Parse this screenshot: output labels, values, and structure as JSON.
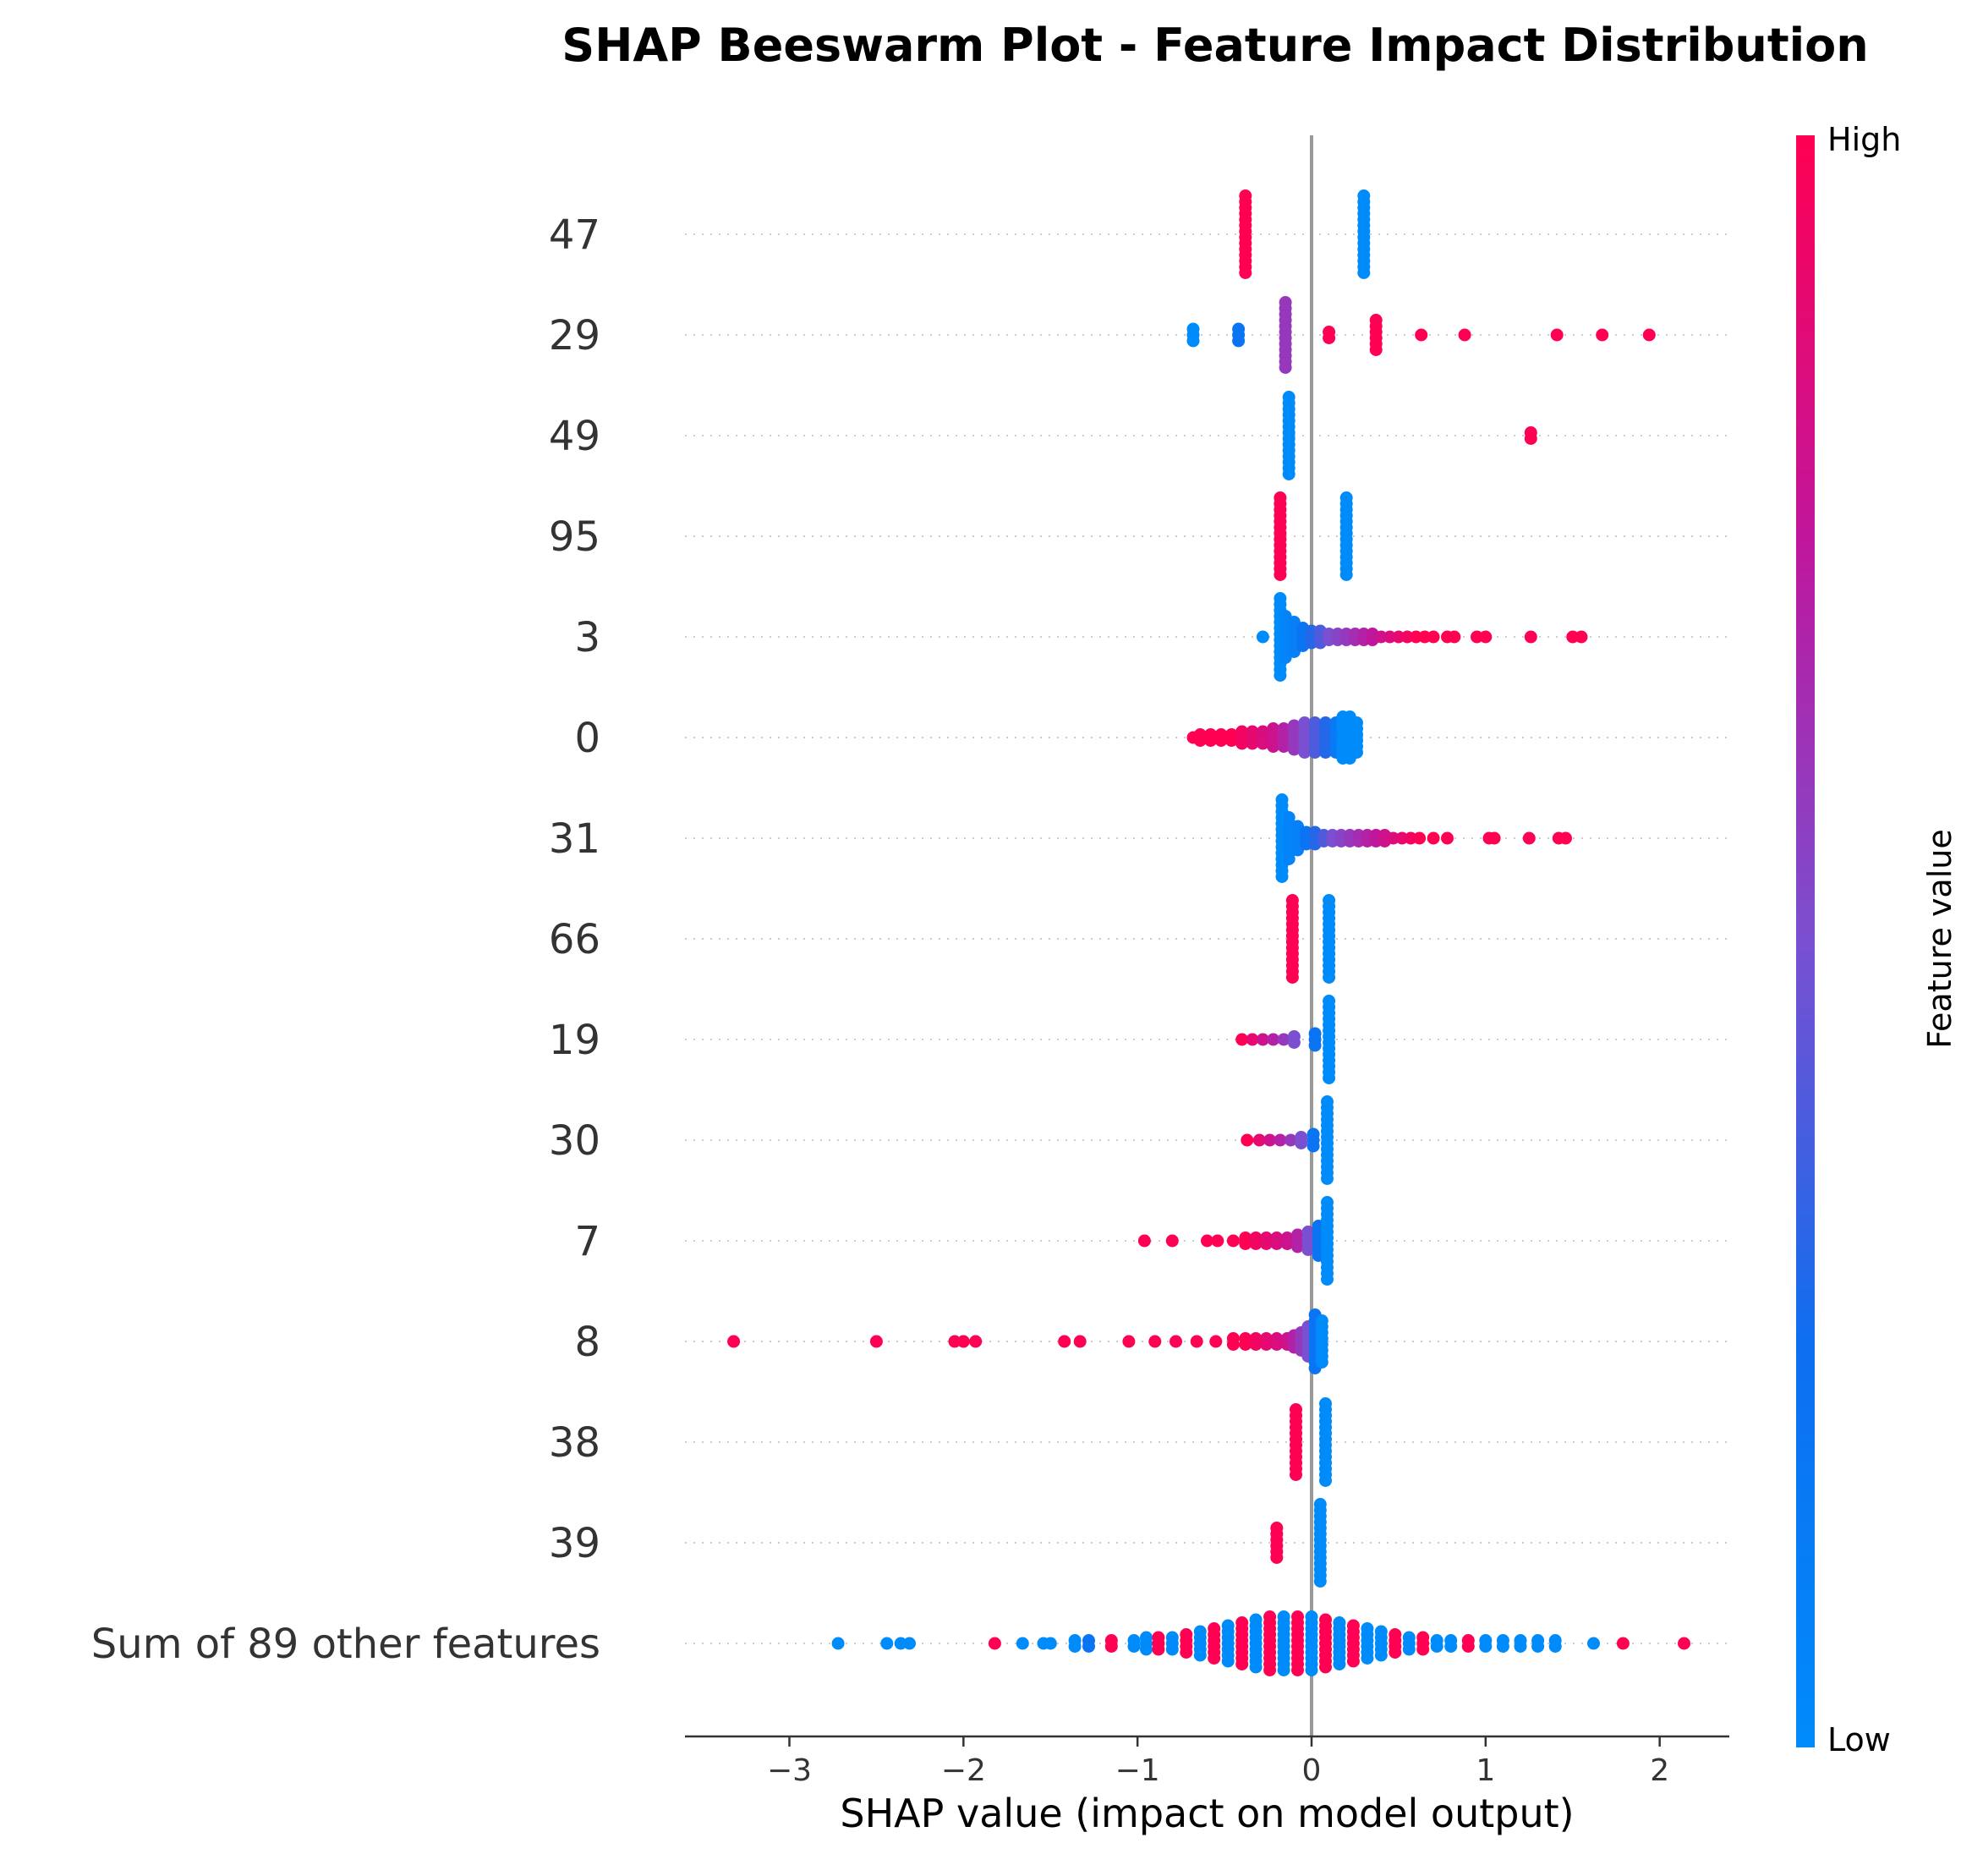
{
  "chart_data": {
    "type": "scatter",
    "subtype": "beeswarm",
    "title": "SHAP Beeswarm Plot - Feature Impact Distribution",
    "xlabel": "SHAP value (impact on model output)",
    "xlim": [
      -3.6,
      2.4
    ],
    "xticks": [
      -3,
      -2,
      -1,
      0,
      1,
      2
    ],
    "xtick_labels": [
      "−3",
      "−2",
      "−1",
      "0",
      "1",
      "2"
    ],
    "colorbar": {
      "label": "Feature value",
      "high_label": "High",
      "low_label": "Low",
      "high_color": "#ff0052",
      "low_color": "#008bfb"
    },
    "features": [
      {
        "name": "47",
        "points": [
          {
            "x": -0.38,
            "v": 1,
            "n": 14
          },
          {
            "x": 0.3,
            "v": 0,
            "n": 14
          }
        ]
      },
      {
        "name": "29",
        "points": [
          {
            "x": -0.68,
            "v": 0,
            "n": 3
          },
          {
            "x": -0.42,
            "v": 0.2,
            "n": 3
          },
          {
            "x": -0.15,
            "v": 0.6,
            "n": 12
          },
          {
            "x": 0.1,
            "v": 1,
            "n": 2
          },
          {
            "x": 0.37,
            "v": 1,
            "n": 6
          },
          {
            "x": 0.63,
            "v": 1,
            "n": 1
          },
          {
            "x": 0.88,
            "v": 1,
            "n": 1
          },
          {
            "x": 1.41,
            "v": 1,
            "n": 1
          },
          {
            "x": 1.67,
            "v": 1,
            "n": 1
          },
          {
            "x": 1.94,
            "v": 1,
            "n": 1
          }
        ]
      },
      {
        "name": "49",
        "points": [
          {
            "x": -0.13,
            "v": 0,
            "n": 14
          },
          {
            "x": 1.26,
            "v": 1,
            "n": 2
          }
        ]
      },
      {
        "name": "95",
        "points": [
          {
            "x": -0.18,
            "v": 1,
            "n": 14
          },
          {
            "x": 0.2,
            "v": 0,
            "n": 14
          }
        ]
      },
      {
        "name": "3",
        "points": [
          {
            "x": -0.28,
            "v": 0,
            "n": 1
          },
          {
            "x": -0.18,
            "v": 0,
            "n": 14
          },
          {
            "x": -0.15,
            "v": 0.05,
            "n": 8
          },
          {
            "x": -0.1,
            "v": 0.1,
            "n": 6
          },
          {
            "x": -0.05,
            "v": 0.2,
            "n": 4
          },
          {
            "x": 0.0,
            "v": 0.3,
            "n": 3
          },
          {
            "x": 0.05,
            "v": 0.4,
            "n": 3
          },
          {
            "x": 0.1,
            "v": 0.5,
            "n": 2
          },
          {
            "x": 0.15,
            "v": 0.55,
            "n": 2
          },
          {
            "x": 0.2,
            "v": 0.6,
            "n": 2
          },
          {
            "x": 0.25,
            "v": 0.65,
            "n": 2
          },
          {
            "x": 0.3,
            "v": 0.7,
            "n": 2
          },
          {
            "x": 0.35,
            "v": 0.75,
            "n": 2
          },
          {
            "x": 0.4,
            "v": 0.8,
            "n": 1
          },
          {
            "x": 0.45,
            "v": 0.85,
            "n": 1
          },
          {
            "x": 0.5,
            "v": 0.9,
            "n": 1
          },
          {
            "x": 0.55,
            "v": 0.95,
            "n": 1
          },
          {
            "x": 0.6,
            "v": 1,
            "n": 1
          },
          {
            "x": 0.65,
            "v": 1,
            "n": 1
          },
          {
            "x": 0.7,
            "v": 1,
            "n": 1
          },
          {
            "x": 0.78,
            "v": 1,
            "n": 1
          },
          {
            "x": 0.82,
            "v": 1,
            "n": 1
          },
          {
            "x": 0.95,
            "v": 1,
            "n": 1
          },
          {
            "x": 1.0,
            "v": 1,
            "n": 1
          },
          {
            "x": 1.26,
            "v": 1,
            "n": 1
          },
          {
            "x": 1.5,
            "v": 1,
            "n": 1
          },
          {
            "x": 1.55,
            "v": 1,
            "n": 1
          }
        ]
      },
      {
        "name": "0",
        "points": [
          {
            "x": -0.68,
            "v": 1,
            "n": 1
          },
          {
            "x": -0.64,
            "v": 1,
            "n": 2
          },
          {
            "x": -0.58,
            "v": 1,
            "n": 2
          },
          {
            "x": -0.52,
            "v": 1,
            "n": 2
          },
          {
            "x": -0.46,
            "v": 1,
            "n": 2
          },
          {
            "x": -0.4,
            "v": 0.95,
            "n": 3
          },
          {
            "x": -0.34,
            "v": 0.9,
            "n": 3
          },
          {
            "x": -0.28,
            "v": 0.85,
            "n": 3
          },
          {
            "x": -0.22,
            "v": 0.8,
            "n": 4
          },
          {
            "x": -0.16,
            "v": 0.7,
            "n": 4
          },
          {
            "x": -0.1,
            "v": 0.6,
            "n": 5
          },
          {
            "x": -0.04,
            "v": 0.5,
            "n": 6
          },
          {
            "x": 0.02,
            "v": 0.4,
            "n": 6
          },
          {
            "x": 0.08,
            "v": 0.3,
            "n": 6
          },
          {
            "x": 0.14,
            "v": 0.15,
            "n": 6
          },
          {
            "x": 0.18,
            "v": 0,
            "n": 8
          },
          {
            "x": 0.22,
            "v": 0,
            "n": 8
          },
          {
            "x": 0.26,
            "v": 0,
            "n": 6
          }
        ]
      },
      {
        "name": "31",
        "points": [
          {
            "x": -0.17,
            "v": 0,
            "n": 14
          },
          {
            "x": -0.13,
            "v": 0.05,
            "n": 8
          },
          {
            "x": -0.08,
            "v": 0.1,
            "n": 5
          },
          {
            "x": -0.03,
            "v": 0.2,
            "n": 3
          },
          {
            "x": 0.02,
            "v": 0.3,
            "n": 3
          },
          {
            "x": 0.07,
            "v": 0.4,
            "n": 2
          },
          {
            "x": 0.12,
            "v": 0.5,
            "n": 2
          },
          {
            "x": 0.17,
            "v": 0.55,
            "n": 2
          },
          {
            "x": 0.22,
            "v": 0.6,
            "n": 2
          },
          {
            "x": 0.27,
            "v": 0.65,
            "n": 2
          },
          {
            "x": 0.32,
            "v": 0.7,
            "n": 2
          },
          {
            "x": 0.37,
            "v": 0.75,
            "n": 2
          },
          {
            "x": 0.42,
            "v": 0.8,
            "n": 2
          },
          {
            "x": 0.47,
            "v": 0.85,
            "n": 1
          },
          {
            "x": 0.52,
            "v": 0.9,
            "n": 1
          },
          {
            "x": 0.57,
            "v": 0.95,
            "n": 1
          },
          {
            "x": 0.62,
            "v": 1,
            "n": 1
          },
          {
            "x": 0.7,
            "v": 1,
            "n": 1
          },
          {
            "x": 0.78,
            "v": 1,
            "n": 1
          },
          {
            "x": 1.02,
            "v": 1,
            "n": 1
          },
          {
            "x": 1.05,
            "v": 1,
            "n": 1
          },
          {
            "x": 1.25,
            "v": 1,
            "n": 1
          },
          {
            "x": 1.42,
            "v": 1,
            "n": 1
          },
          {
            "x": 1.46,
            "v": 1,
            "n": 1
          }
        ]
      },
      {
        "name": "66",
        "points": [
          {
            "x": -0.11,
            "v": 1,
            "n": 14
          },
          {
            "x": 0.1,
            "v": 0,
            "n": 14
          }
        ]
      },
      {
        "name": "19",
        "points": [
          {
            "x": -0.4,
            "v": 1,
            "n": 1
          },
          {
            "x": -0.34,
            "v": 0.9,
            "n": 1
          },
          {
            "x": -0.28,
            "v": 0.8,
            "n": 1
          },
          {
            "x": -0.22,
            "v": 0.7,
            "n": 1
          },
          {
            "x": -0.16,
            "v": 0.6,
            "n": 1
          },
          {
            "x": -0.1,
            "v": 0.5,
            "n": 2
          },
          {
            "x": 0.02,
            "v": 0.2,
            "n": 3
          },
          {
            "x": 0.1,
            "v": 0,
            "n": 14
          }
        ]
      },
      {
        "name": "30",
        "points": [
          {
            "x": -0.37,
            "v": 1,
            "n": 1
          },
          {
            "x": -0.3,
            "v": 0.9,
            "n": 1
          },
          {
            "x": -0.24,
            "v": 0.8,
            "n": 1
          },
          {
            "x": -0.18,
            "v": 0.7,
            "n": 1
          },
          {
            "x": -0.12,
            "v": 0.6,
            "n": 1
          },
          {
            "x": -0.06,
            "v": 0.5,
            "n": 2
          },
          {
            "x": 0.01,
            "v": 0.2,
            "n": 3
          },
          {
            "x": 0.09,
            "v": 0,
            "n": 14
          }
        ]
      },
      {
        "name": "7",
        "points": [
          {
            "x": -0.96,
            "v": 1,
            "n": 1
          },
          {
            "x": -0.8,
            "v": 1,
            "n": 1
          },
          {
            "x": -0.6,
            "v": 1,
            "n": 1
          },
          {
            "x": -0.54,
            "v": 1,
            "n": 1
          },
          {
            "x": -0.45,
            "v": 1,
            "n": 1
          },
          {
            "x": -0.38,
            "v": 1,
            "n": 2
          },
          {
            "x": -0.32,
            "v": 0.95,
            "n": 2
          },
          {
            "x": -0.26,
            "v": 0.9,
            "n": 2
          },
          {
            "x": -0.2,
            "v": 0.85,
            "n": 2
          },
          {
            "x": -0.14,
            "v": 0.8,
            "n": 2
          },
          {
            "x": -0.08,
            "v": 0.7,
            "n": 3
          },
          {
            "x": -0.02,
            "v": 0.5,
            "n": 4
          },
          {
            "x": 0.04,
            "v": 0.2,
            "n": 6
          },
          {
            "x": 0.09,
            "v": 0,
            "n": 14
          }
        ]
      },
      {
        "name": "8",
        "points": [
          {
            "x": -3.32,
            "v": 1,
            "n": 1
          },
          {
            "x": -2.5,
            "v": 1,
            "n": 1
          },
          {
            "x": -2.05,
            "v": 1,
            "n": 1
          },
          {
            "x": -2.0,
            "v": 1,
            "n": 1
          },
          {
            "x": -1.93,
            "v": 1,
            "n": 1
          },
          {
            "x": -1.42,
            "v": 1,
            "n": 1
          },
          {
            "x": -1.33,
            "v": 1,
            "n": 1
          },
          {
            "x": -1.05,
            "v": 1,
            "n": 1
          },
          {
            "x": -0.9,
            "v": 1,
            "n": 1
          },
          {
            "x": -0.78,
            "v": 1,
            "n": 1
          },
          {
            "x": -0.66,
            "v": 1,
            "n": 1
          },
          {
            "x": -0.55,
            "v": 1,
            "n": 1
          },
          {
            "x": -0.45,
            "v": 1,
            "n": 2
          },
          {
            "x": -0.38,
            "v": 1,
            "n": 2
          },
          {
            "x": -0.32,
            "v": 0.95,
            "n": 2
          },
          {
            "x": -0.26,
            "v": 0.9,
            "n": 2
          },
          {
            "x": -0.2,
            "v": 0.85,
            "n": 2
          },
          {
            "x": -0.14,
            "v": 0.8,
            "n": 2
          },
          {
            "x": -0.1,
            "v": 0.7,
            "n": 3
          },
          {
            "x": -0.06,
            "v": 0.6,
            "n": 4
          },
          {
            "x": -0.02,
            "v": 0.5,
            "n": 6
          },
          {
            "x": 0.02,
            "v": 0.2,
            "n": 10
          },
          {
            "x": 0.06,
            "v": 0,
            "n": 8
          }
        ]
      },
      {
        "name": "38",
        "points": [
          {
            "x": -0.09,
            "v": 1,
            "n": 12
          },
          {
            "x": 0.08,
            "v": 0,
            "n": 14
          }
        ]
      },
      {
        "name": "39",
        "points": [
          {
            "x": -0.2,
            "v": 1,
            "n": 6
          },
          {
            "x": 0.05,
            "v": 0,
            "n": 14
          }
        ]
      },
      {
        "name": "Sum of 89 other features",
        "points": [
          {
            "x": -2.72,
            "v": 0,
            "n": 1
          },
          {
            "x": -2.44,
            "v": 0,
            "n": 1
          },
          {
            "x": -2.36,
            "v": 0,
            "n": 1
          },
          {
            "x": -2.31,
            "v": 0,
            "n": 1
          },
          {
            "x": -1.82,
            "v": 1,
            "n": 1
          },
          {
            "x": -1.66,
            "v": 0,
            "n": 1
          },
          {
            "x": -1.54,
            "v": 0,
            "n": 1
          },
          {
            "x": -1.5,
            "v": 0,
            "n": 1
          },
          {
            "x": -1.36,
            "v": 0,
            "n": 2
          },
          {
            "x": -1.28,
            "v": 0.2,
            "n": 2
          },
          {
            "x": -1.15,
            "v": 1,
            "n": 2
          },
          {
            "x": -1.02,
            "v": 0,
            "n": 2
          },
          {
            "x": -0.95,
            "v": 0,
            "n": 3
          },
          {
            "x": -0.88,
            "v": 1,
            "n": 3
          },
          {
            "x": -0.8,
            "v": 0,
            "n": 3
          },
          {
            "x": -0.72,
            "v": 1,
            "n": 4
          },
          {
            "x": -0.64,
            "v": 0,
            "n": 5
          },
          {
            "x": -0.56,
            "v": 1,
            "n": 6
          },
          {
            "x": -0.48,
            "v": 0,
            "n": 7
          },
          {
            "x": -0.4,
            "v": 1,
            "n": 8
          },
          {
            "x": -0.32,
            "v": 0,
            "n": 9
          },
          {
            "x": -0.24,
            "v": 1,
            "n": 10
          },
          {
            "x": -0.16,
            "v": 0,
            "n": 10
          },
          {
            "x": -0.08,
            "v": 1,
            "n": 10
          },
          {
            "x": 0.0,
            "v": 0,
            "n": 10
          },
          {
            "x": 0.08,
            "v": 1,
            "n": 9
          },
          {
            "x": 0.16,
            "v": 0,
            "n": 8
          },
          {
            "x": 0.24,
            "v": 1,
            "n": 7
          },
          {
            "x": 0.32,
            "v": 0,
            "n": 6
          },
          {
            "x": 0.4,
            "v": 0,
            "n": 5
          },
          {
            "x": 0.48,
            "v": 1,
            "n": 4
          },
          {
            "x": 0.56,
            "v": 0,
            "n": 3
          },
          {
            "x": 0.64,
            "v": 1,
            "n": 3
          },
          {
            "x": 0.72,
            "v": 0,
            "n": 2
          },
          {
            "x": 0.8,
            "v": 0,
            "n": 2
          },
          {
            "x": 0.9,
            "v": 1,
            "n": 2
          },
          {
            "x": 1.0,
            "v": 0,
            "n": 2
          },
          {
            "x": 1.1,
            "v": 0,
            "n": 2
          },
          {
            "x": 1.2,
            "v": 0,
            "n": 2
          },
          {
            "x": 1.3,
            "v": 0,
            "n": 2
          },
          {
            "x": 1.4,
            "v": 0,
            "n": 2
          },
          {
            "x": 1.62,
            "v": 0,
            "n": 1
          },
          {
            "x": 1.79,
            "v": 1,
            "n": 1
          },
          {
            "x": 2.14,
            "v": 1,
            "n": 1
          }
        ]
      }
    ]
  }
}
